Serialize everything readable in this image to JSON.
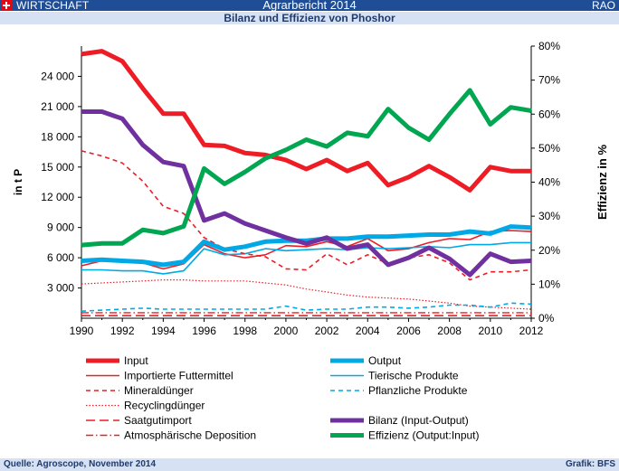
{
  "header": {
    "section": "WIRTSCHAFT",
    "report": "Agrarbericht 2014",
    "org": "RAO",
    "subtitle": "Bilanz und Effizienz von Phoshor"
  },
  "footer": {
    "source": "Quelle: Agroscope, November 2014",
    "graphic": "Grafik: BFS"
  },
  "chart_data": {
    "type": "line",
    "title": "Bilanz und Effizienz von Phoshor",
    "ylabel": "in t P",
    "y2label": "Effizienz in %",
    "ylim": [
      0,
      27000
    ],
    "y2lim": [
      0,
      80
    ],
    "x_ticks": [
      "1990",
      "1992",
      "1994",
      "1996",
      "1998",
      "2000",
      "2002",
      "2004",
      "2006",
      "2008",
      "2010",
      "2012"
    ],
    "y_ticks": [
      "3 000",
      "6 000",
      "9 000",
      "12 000",
      "15 000",
      "18 000",
      "21 000",
      "24 000"
    ],
    "y2_ticks": [
      "0%",
      "10%",
      "20%",
      "30%",
      "40%",
      "50%",
      "60%",
      "70%",
      "80%"
    ],
    "x": [
      1990,
      1991,
      1992,
      1993,
      1994,
      1995,
      1996,
      1997,
      1998,
      1999,
      2000,
      2001,
      2002,
      2003,
      2004,
      2005,
      2006,
      2007,
      2008,
      2009,
      2010,
      2011,
      2012
    ],
    "series": [
      {
        "name": "Input",
        "axis": "left",
        "color": "#ee1c25",
        "width": 5,
        "dash": "",
        "values": [
          26200,
          26500,
          25500,
          22800,
          20300,
          20300,
          17200,
          17100,
          16400,
          16200,
          15700,
          14800,
          15700,
          14600,
          15400,
          13200,
          14000,
          15100,
          14000,
          12700,
          15000,
          14600,
          14600
        ]
      },
      {
        "name": "Output",
        "axis": "left",
        "color": "#00a9e6",
        "width": 5,
        "dash": "",
        "values": [
          5700,
          5800,
          5700,
          5600,
          5300,
          5600,
          7600,
          6800,
          7100,
          7600,
          7700,
          7700,
          7900,
          7900,
          8100,
          8100,
          8200,
          8300,
          8300,
          8600,
          8400,
          9100,
          9000
        ]
      },
      {
        "name": "Importierte Futtermittel",
        "axis": "left",
        "color": "#ee1c25",
        "width": 1.6,
        "dash": "",
        "values": [
          5200,
          5700,
          5700,
          5500,
          4900,
          5400,
          7300,
          6400,
          6000,
          6300,
          7200,
          7100,
          7600,
          7100,
          7900,
          6700,
          6900,
          7500,
          7900,
          7800,
          8600,
          8700,
          8600
        ]
      },
      {
        "name": "Tierische Produkte",
        "axis": "left",
        "color": "#00a9e6",
        "width": 1.6,
        "dash": "",
        "values": [
          4800,
          4800,
          4700,
          4700,
          4400,
          4700,
          6900,
          6300,
          6400,
          6900,
          6700,
          6800,
          6900,
          6800,
          7000,
          6900,
          7000,
          7100,
          7000,
          7300,
          7300,
          7500,
          7500
        ]
      },
      {
        "name": "Mineraldünger",
        "axis": "left",
        "color": "#ee1c25",
        "width": 1.6,
        "dash": "5,4",
        "values": [
          16600,
          16100,
          15400,
          13600,
          11100,
          10400,
          8000,
          6900,
          6400,
          6100,
          4900,
          4800,
          6400,
          5300,
          6300,
          5400,
          6000,
          6300,
          5500,
          3800,
          4600,
          4600,
          4800
        ]
      },
      {
        "name": "Pflanzliche Produkte",
        "axis": "left",
        "color": "#00a9e6",
        "width": 1.6,
        "dash": "5,4",
        "values": [
          700,
          800,
          900,
          1000,
          900,
          900,
          900,
          900,
          900,
          900,
          1200,
          800,
          900,
          900,
          1100,
          1100,
          1000,
          1100,
          1300,
          1300,
          1100,
          1500,
          1400
        ]
      },
      {
        "name": "Recyclingdünger",
        "axis": "left",
        "color": "#ee1c25",
        "width": 1.2,
        "dash": "1.5,2",
        "values": [
          3400,
          3500,
          3600,
          3700,
          3800,
          3800,
          3700,
          3700,
          3700,
          3500,
          3300,
          2900,
          2600,
          2300,
          2100,
          2000,
          1900,
          1700,
          1500,
          1200,
          1100,
          1000,
          900
        ]
      },
      {
        "name": "Saatgutimport",
        "axis": "left",
        "color": "#ee1c25",
        "width": 1.6,
        "dash": "10,5",
        "values": [
          250,
          250,
          250,
          250,
          250,
          250,
          250,
          250,
          250,
          250,
          250,
          250,
          250,
          250,
          250,
          250,
          250,
          250,
          250,
          250,
          250,
          250,
          250
        ]
      },
      {
        "name": "Atmosphärische Deposition",
        "axis": "left",
        "color": "#ee1c25",
        "width": 1.4,
        "dash": "8,3,1.5,3",
        "values": [
          550,
          550,
          550,
          550,
          550,
          550,
          550,
          550,
          550,
          550,
          550,
          550,
          550,
          550,
          550,
          550,
          550,
          550,
          550,
          550,
          550,
          550,
          550
        ]
      },
      {
        "name": "Bilanz (Input-Output)",
        "axis": "left",
        "color": "#7030a0",
        "width": 5,
        "dash": "",
        "values": [
          20500,
          20500,
          19800,
          17200,
          15500,
          15100,
          9700,
          10400,
          9400,
          8700,
          8000,
          7400,
          8000,
          6900,
          7300,
          5300,
          6000,
          7000,
          5900,
          4300,
          6400,
          5600,
          5700
        ]
      },
      {
        "name": "Effizienz (Output:Input)",
        "axis": "right",
        "color": "#00a650",
        "width": 5,
        "dash": "",
        "values": [
          21.5,
          22,
          22,
          26,
          25,
          27,
          44,
          39.5,
          43,
          47,
          49.5,
          52.5,
          50.5,
          54.5,
          53.5,
          61.5,
          56,
          52.5,
          60,
          67,
          57,
          62,
          61
        ]
      }
    ],
    "legend_order": [
      "Input",
      "Output",
      "Importierte Futtermittel",
      "Tierische Produkte",
      "Mineraldünger",
      "Pflanzliche Produkte",
      "Recyclingdünger",
      "",
      "Saatgutimport",
      "Bilanz (Input-Output)",
      "Atmosphärische Deposition",
      "Effizienz (Output:Input)"
    ],
    "grid": false,
    "legend_position": "bottom"
  }
}
